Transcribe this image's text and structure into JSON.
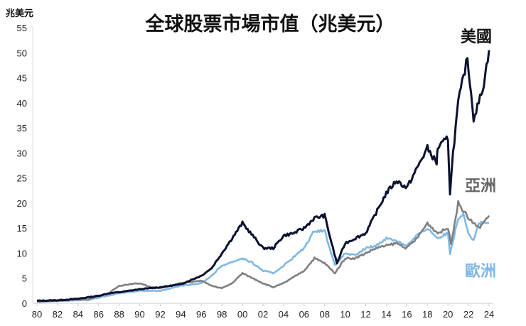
{
  "chart_data": {
    "type": "line",
    "title": "全球股票市場市值（兆美元）",
    "ylabel": "兆美元",
    "xlabel": "",
    "xlim": [
      1980,
      2024
    ],
    "ylim": [
      0,
      55
    ],
    "yticks": [
      0,
      5,
      10,
      15,
      20,
      25,
      30,
      35,
      40,
      45,
      50,
      55
    ],
    "xtick_labels": [
      "80",
      "82",
      "84",
      "86",
      "88",
      "90",
      "92",
      "94",
      "96",
      "98",
      "00",
      "02",
      "04",
      "06",
      "08",
      "10",
      "12",
      "14",
      "16",
      "18",
      "20",
      "22",
      "24"
    ],
    "grid": false,
    "legend": "inline labels at right end of each series",
    "series": [
      {
        "name": "美國",
        "color": "#0b1230",
        "x": [
          1980,
          1982,
          1984,
          1986,
          1987,
          1988,
          1990,
          1992,
          1994,
          1996,
          1997,
          1998,
          1999,
          2000,
          2001,
          2002,
          2003,
          2004,
          2005,
          2006,
          2007,
          2008,
          2008.8,
          2009.2,
          2010,
          2011,
          2012,
          2013,
          2014,
          2015,
          2016,
          2017,
          2018,
          2018.9,
          2019,
          2020,
          2020.2,
          2020.5,
          2021,
          2021.9,
          2022.5,
          2023,
          2023.5,
          2024
        ],
        "y": [
          0.5,
          0.6,
          0.9,
          1.5,
          2.0,
          2.2,
          2.8,
          3.2,
          3.8,
          5.5,
          7,
          10,
          13,
          16,
          13.5,
          11,
          11,
          13.5,
          14,
          15,
          17,
          17.5,
          11,
          8,
          12,
          13,
          14,
          18,
          22,
          24.5,
          23,
          27,
          31,
          28,
          31,
          33,
          22,
          30,
          40,
          49,
          37,
          40,
          44,
          50.5
        ]
      },
      {
        "name": "亞洲",
        "color": "#7f7f7f",
        "x": [
          1980,
          1985,
          1987,
          1988,
          1989,
          1990,
          1991,
          1992,
          1994,
          1996,
          1997,
          1998,
          1999,
          2000,
          2001,
          2002,
          2003,
          2004,
          2006,
          2007,
          2008,
          2009,
          2010,
          2011,
          2012,
          2013,
          2014,
          2015,
          2016,
          2017,
          2018,
          2019,
          2020,
          2020.3,
          2021,
          2022,
          2023,
          2024
        ],
        "y": [
          0.3,
          0.8,
          2,
          3.5,
          3.8,
          4,
          3.3,
          3,
          4,
          4.5,
          3.5,
          3,
          4,
          6,
          5,
          4,
          3.2,
          4,
          6.5,
          9,
          8,
          6,
          9,
          9,
          10,
          11,
          11.5,
          12,
          11,
          13,
          16,
          14,
          15,
          12,
          20,
          17,
          15,
          17.5
        ]
      },
      {
        "name": "歐洲",
        "color": "#7fb8e4",
        "x": [
          1980,
          1985,
          1988,
          1990,
          1992,
          1994,
          1996,
          1997,
          1998,
          2000,
          2001,
          2002,
          2003,
          2004,
          2006,
          2007,
          2008,
          2009,
          2010,
          2011,
          2012,
          2013,
          2014,
          2015,
          2016,
          2017,
          2018,
          2019,
          2020,
          2020.2,
          2021,
          2021.5,
          2022,
          2022.5,
          2023,
          2024
        ],
        "y": [
          0.3,
          0.7,
          2,
          2.5,
          2.5,
          3.5,
          4,
          5.5,
          7.5,
          9,
          8,
          6.5,
          6,
          7.5,
          11,
          14.5,
          14.5,
          7.5,
          10,
          9.5,
          11,
          11.5,
          13,
          12.5,
          11.5,
          13.5,
          15,
          13,
          14,
          10,
          17,
          18,
          14,
          12.5,
          16,
          16
        ]
      }
    ]
  }
}
